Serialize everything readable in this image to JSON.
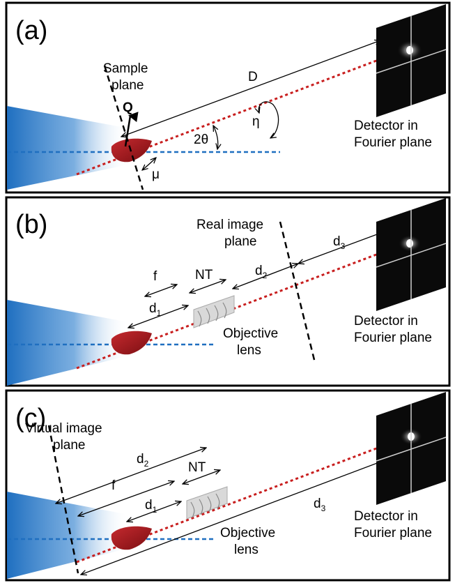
{
  "panels": [
    {
      "letter": "(a)",
      "sample_plane_line1": "Sample",
      "sample_plane_line2": "plane",
      "q_label": "Q",
      "distance_label": "D",
      "angle_label": "2θ",
      "eta_label": "η",
      "mu_label": "μ",
      "detector_line1": "Detector in",
      "detector_line2": "Fourier plane"
    },
    {
      "letter": "(b)",
      "image_plane_line1": "Real image",
      "image_plane_line2": "plane",
      "f_label": "f",
      "nt_label": "NT",
      "d1_label": "d",
      "d1_sub": "1",
      "d2_label": "d",
      "d2_sub": "2",
      "d3_label": "d",
      "d3_sub": "3",
      "lens_line1": "Objective",
      "lens_line2": "lens",
      "detector_line1": "Detector in",
      "detector_line2": "Fourier plane"
    },
    {
      "letter": "(c)",
      "image_plane_line1": "Virtual image",
      "image_plane_line2": "plane",
      "f_label": "f",
      "nt_label": "NT",
      "d1_label": "d",
      "d1_sub": "1",
      "d2_label": "d",
      "d2_sub": "2",
      "d3_label": "d",
      "d3_sub": "3",
      "lens_line1": "Objective",
      "lens_line2": "lens",
      "detector_line1": "Detector in",
      "detector_line2": "Fourier plane"
    }
  ],
  "colors": {
    "beam": "#1f6fc0",
    "ray": "#c81e1e",
    "sample": "#a4161a",
    "lens": "#c8c8c8"
  }
}
